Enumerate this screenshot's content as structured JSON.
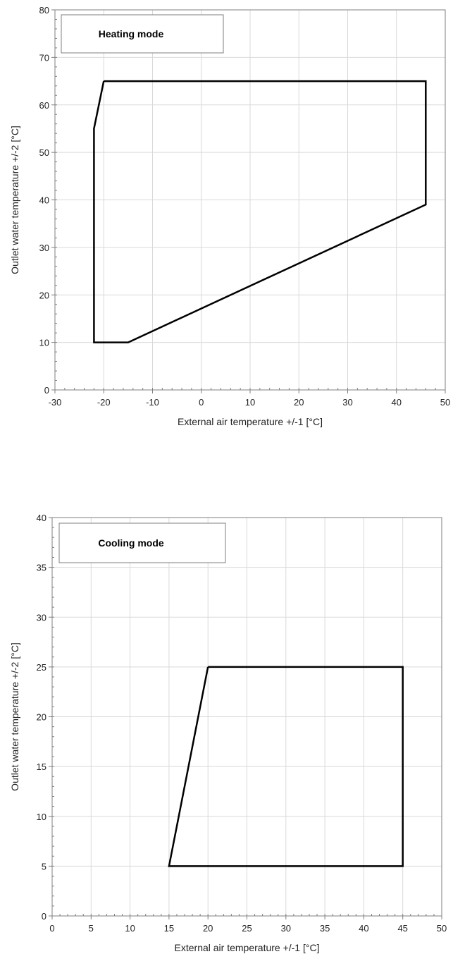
{
  "chart_data": [
    {
      "type": "line",
      "title": "Heating mode",
      "xlabel": "External air temperature +/-1 [°C]",
      "ylabel": "Outlet water temperature +/-2 [°C]",
      "xlim": [
        -30,
        50
      ],
      "ylim": [
        0,
        80
      ],
      "x_ticks": [
        -30,
        -20,
        -10,
        0,
        10,
        20,
        30,
        40,
        50
      ],
      "y_ticks": [
        0,
        10,
        20,
        30,
        40,
        50,
        60,
        70,
        80
      ],
      "grid": true,
      "series": [
        {
          "x": [
            -20,
            46,
            46,
            -15,
            -22,
            -22,
            -20
          ],
          "y": [
            65,
            65,
            39,
            10,
            10,
            55,
            65
          ]
        }
      ],
      "line_color": "#000000",
      "grid_color": "#d9d9d9"
    },
    {
      "type": "line",
      "title": "Cooling mode",
      "xlabel": "External air temperature +/-1 [°C]",
      "ylabel": "Outlet water temperature +/-2 [°C]",
      "xlim": [
        0,
        50
      ],
      "ylim": [
        0,
        40
      ],
      "x_ticks": [
        0,
        5,
        10,
        15,
        20,
        25,
        30,
        35,
        40,
        45,
        50
      ],
      "y_ticks": [
        0,
        5,
        10,
        15,
        20,
        25,
        30,
        35,
        40
      ],
      "grid": true,
      "series": [
        {
          "x": [
            20,
            45,
            45,
            15,
            20
          ],
          "y": [
            25,
            25,
            5,
            5,
            25
          ]
        }
      ],
      "line_color": "#000000",
      "grid_color": "#d9d9d9"
    }
  ]
}
